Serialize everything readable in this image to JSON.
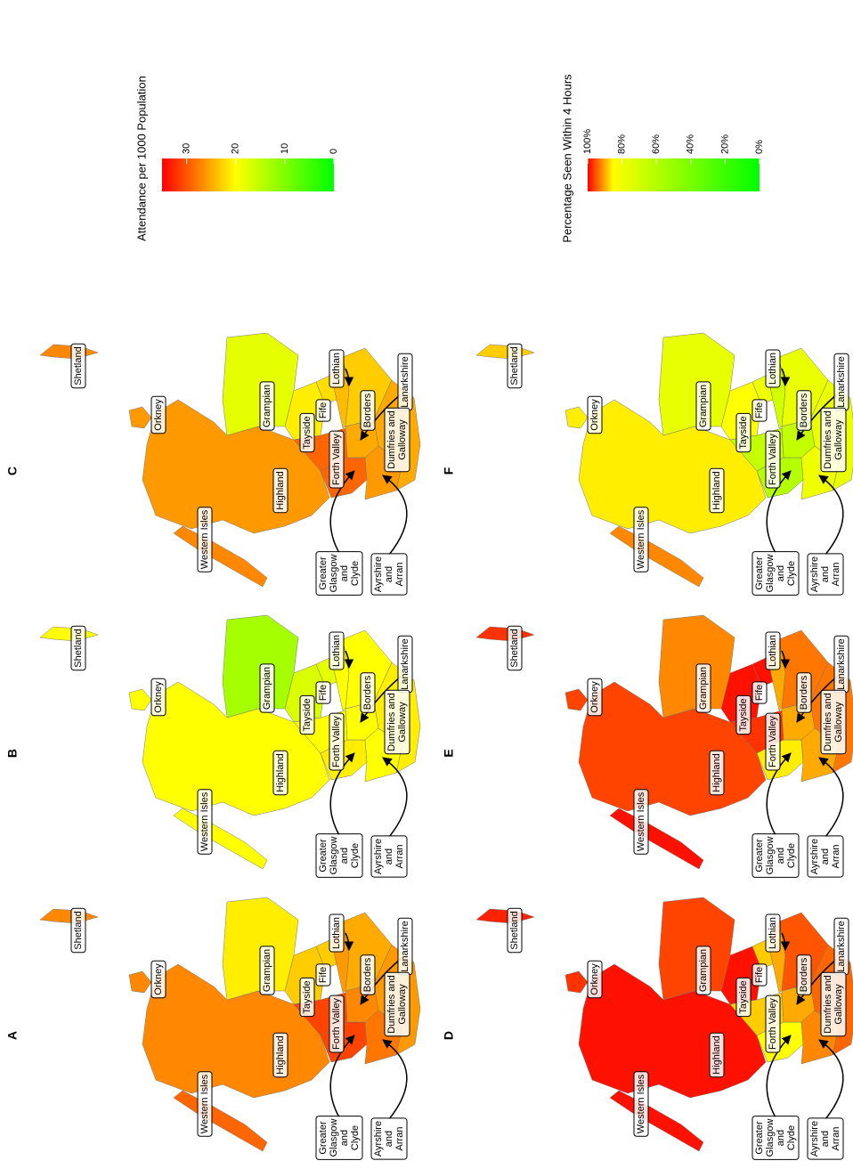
{
  "panels": [
    {
      "letter": "A",
      "legend": 0,
      "values": [
        29,
        27,
        21,
        23,
        23,
        31,
        31,
        26,
        27,
        25,
        28,
        26,
        27,
        27
      ]
    },
    {
      "letter": "B",
      "legend": 0,
      "values": [
        20,
        20,
        13,
        17,
        18,
        20,
        21,
        20,
        20,
        20,
        20,
        21,
        20,
        20
      ]
    },
    {
      "letter": "C",
      "legend": 0,
      "values": [
        27,
        26,
        18,
        21,
        22,
        29,
        29,
        24,
        25,
        23,
        26,
        25,
        26,
        27
      ]
    },
    {
      "letter": "D",
      "legend": 1,
      "values": [
        99,
        99,
        96,
        99,
        88,
        88,
        85,
        90,
        90,
        95,
        92,
        94,
        97,
        98
      ]
    },
    {
      "letter": "E",
      "legend": 1,
      "values": [
        99,
        96,
        92,
        99,
        99,
        97,
        86,
        90,
        90,
        93,
        90,
        93,
        96,
        97
      ]
    },
    {
      "letter": "F",
      "legend": 1,
      "values": [
        92,
        86,
        77,
        85,
        80,
        65,
        60,
        70,
        65,
        78,
        80,
        78,
        86,
        88
      ]
    }
  ],
  "regions": [
    {
      "label": [
        "Western Isles"
      ]
    },
    {
      "label": [
        "Highland"
      ]
    },
    {
      "label": [
        "Grampian"
      ]
    },
    {
      "label": [
        "Tayside"
      ]
    },
    {
      "label": [
        "Fife"
      ]
    },
    {
      "label": [
        "Forth Valley"
      ]
    },
    {
      "label": [
        "Greater",
        "Glasgow",
        "and",
        "Clyde"
      ]
    },
    {
      "label": [
        "Lothian"
      ]
    },
    {
      "label": [
        "Lanarkshire"
      ]
    },
    {
      "label": [
        "Borders"
      ]
    },
    {
      "label": [
        "Ayrshire",
        "and",
        "Arran"
      ]
    },
    {
      "label": [
        "Dumfries and",
        "Galloway"
      ]
    },
    {
      "label": [
        "Orkney"
      ]
    },
    {
      "label": [
        "Shetland"
      ]
    }
  ],
  "legends": [
    {
      "title": "Attendance per 1000 Population",
      "range": [
        0,
        35
      ],
      "ticks": [
        30,
        20,
        10,
        0
      ],
      "stops": [
        {
          "value": 0,
          "color": "#00ff00"
        },
        {
          "value": 20,
          "color": "#ffff00"
        },
        {
          "value": 35,
          "color": "#ff0000"
        }
      ]
    },
    {
      "title": "Percentage Seen Within 4 Hours",
      "range": [
        0,
        100
      ],
      "ticks": [
        {
          "value": 100,
          "label": "100%"
        },
        {
          "value": 80,
          "label": "80%"
        },
        {
          "value": 60,
          "label": "60%"
        },
        {
          "value": 40,
          "label": "40%"
        },
        {
          "value": 20,
          "label": "20%"
        },
        {
          "value": 0,
          "label": "0%"
        }
      ],
      "stops": [
        {
          "value": 0,
          "color": "#00ff00"
        },
        {
          "value": 85,
          "color": "#ffff00"
        },
        {
          "value": 100,
          "color": "#ff0000"
        }
      ]
    }
  ]
}
